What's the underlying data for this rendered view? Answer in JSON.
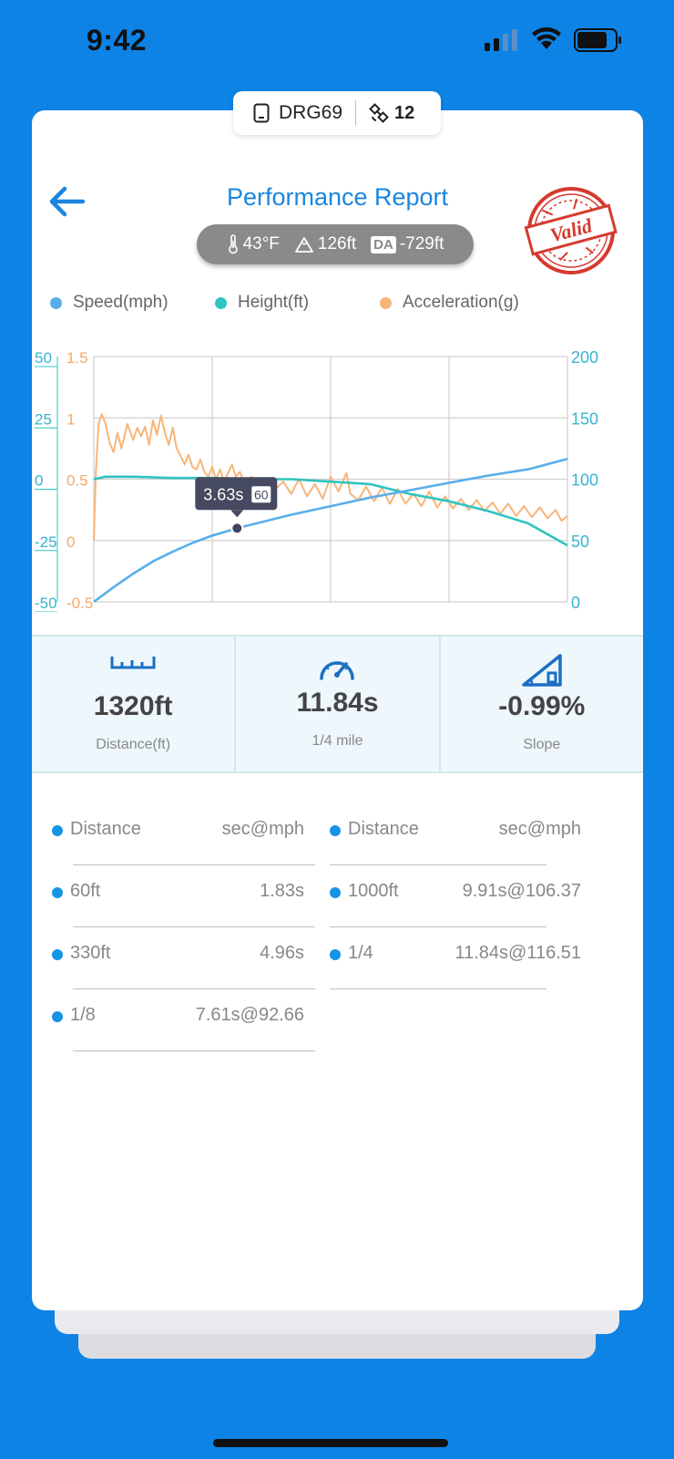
{
  "status_bar": {
    "time": "9:42"
  },
  "device": {
    "name": "DRG69",
    "satellites": "12"
  },
  "header": {
    "title": "Performance Report",
    "stamp_text": "Valid"
  },
  "conditions": {
    "temperature": "43°F",
    "altitude": "126ft",
    "da_label": "DA",
    "density_altitude": "-729ft"
  },
  "legend": [
    {
      "label": "Speed(mph)",
      "color": "#5aaee8"
    },
    {
      "label": "Height(ft)",
      "color": "#2ec4c0"
    },
    {
      "label": "Acceleration(g)",
      "color": "#f7b57a"
    }
  ],
  "chart_data": {
    "type": "line",
    "x_range": [
      0,
      12
    ],
    "axes": {
      "height_ticks": [
        "50",
        "25",
        "0",
        "-25",
        "-50"
      ],
      "accel_ticks": [
        "1.5",
        "1",
        "0.5",
        "0",
        "-0.5"
      ],
      "speed_ticks": [
        "200",
        "150",
        "100",
        "50",
        "0"
      ],
      "height_range": [
        -50,
        50
      ],
      "accel_range": [
        -0.5,
        1.5
      ],
      "speed_range": [
        0,
        200
      ]
    },
    "grid": true,
    "series": [
      {
        "name": "Speed(mph)",
        "axis": "right",
        "color": "#5aaee8",
        "points": [
          [
            0,
            0
          ],
          [
            0.5,
            12
          ],
          [
            1,
            23
          ],
          [
            1.5,
            33
          ],
          [
            2,
            41
          ],
          [
            2.5,
            48
          ],
          [
            3,
            54
          ],
          [
            3.63,
            60
          ],
          [
            4,
            63
          ],
          [
            5,
            71
          ],
          [
            6,
            78
          ],
          [
            7,
            85
          ],
          [
            8,
            91
          ],
          [
            9,
            97
          ],
          [
            10,
            103
          ],
          [
            11,
            108
          ],
          [
            12,
            116.5
          ]
        ]
      },
      {
        "name": "Height(ft)",
        "axis": "left",
        "color": "#2ec4c0",
        "points": [
          [
            0,
            0
          ],
          [
            0.3,
            1
          ],
          [
            1,
            1
          ],
          [
            2,
            0.5
          ],
          [
            3,
            0.5
          ],
          [
            4,
            0
          ],
          [
            5,
            0
          ],
          [
            6,
            -1
          ],
          [
            7,
            -2
          ],
          [
            8,
            -6
          ],
          [
            9,
            -9
          ],
          [
            10,
            -13
          ],
          [
            11,
            -18
          ],
          [
            12,
            -27
          ]
        ]
      },
      {
        "name": "Acceleration(g)",
        "axis": "left2",
        "color": "#f7b57a",
        "points": [
          [
            0,
            0
          ],
          [
            0.05,
            0.55
          ],
          [
            0.12,
            0.95
          ],
          [
            0.2,
            1.03
          ],
          [
            0.3,
            0.95
          ],
          [
            0.4,
            0.8
          ],
          [
            0.5,
            0.72
          ],
          [
            0.6,
            0.88
          ],
          [
            0.7,
            0.75
          ],
          [
            0.85,
            0.95
          ],
          [
            1.0,
            0.82
          ],
          [
            1.1,
            0.92
          ],
          [
            1.2,
            0.85
          ],
          [
            1.3,
            0.93
          ],
          [
            1.4,
            0.78
          ],
          [
            1.5,
            0.98
          ],
          [
            1.6,
            0.86
          ],
          [
            1.7,
            1.02
          ],
          [
            1.8,
            0.88
          ],
          [
            1.9,
            0.78
          ],
          [
            2.0,
            0.92
          ],
          [
            2.1,
            0.75
          ],
          [
            2.2,
            0.69
          ],
          [
            2.3,
            0.62
          ],
          [
            2.4,
            0.7
          ],
          [
            2.5,
            0.6
          ],
          [
            2.6,
            0.58
          ],
          [
            2.7,
            0.66
          ],
          [
            2.8,
            0.56
          ],
          [
            2.9,
            0.52
          ],
          [
            3.0,
            0.6
          ],
          [
            3.1,
            0.5
          ],
          [
            3.2,
            0.58
          ],
          [
            3.3,
            0.48
          ],
          [
            3.4,
            0.55
          ],
          [
            3.5,
            0.62
          ],
          [
            3.6,
            0.52
          ],
          [
            3.7,
            0.56
          ],
          [
            3.8,
            0.48
          ],
          [
            4.0,
            0.52
          ],
          [
            4.2,
            0.45
          ],
          [
            4.4,
            0.5
          ],
          [
            4.6,
            0.42
          ],
          [
            4.8,
            0.48
          ],
          [
            5.0,
            0.38
          ],
          [
            5.2,
            0.5
          ],
          [
            5.4,
            0.36
          ],
          [
            5.6,
            0.46
          ],
          [
            5.8,
            0.34
          ],
          [
            6.0,
            0.52
          ],
          [
            6.2,
            0.4
          ],
          [
            6.4,
            0.55
          ],
          [
            6.5,
            0.38
          ],
          [
            6.7,
            0.33
          ],
          [
            6.9,
            0.44
          ],
          [
            7.1,
            0.32
          ],
          [
            7.3,
            0.43
          ],
          [
            7.5,
            0.3
          ],
          [
            7.7,
            0.42
          ],
          [
            7.9,
            0.3
          ],
          [
            8.1,
            0.38
          ],
          [
            8.3,
            0.28
          ],
          [
            8.5,
            0.4
          ],
          [
            8.7,
            0.27
          ],
          [
            8.9,
            0.36
          ],
          [
            9.1,
            0.26
          ],
          [
            9.3,
            0.34
          ],
          [
            9.5,
            0.25
          ],
          [
            9.7,
            0.33
          ],
          [
            9.9,
            0.24
          ],
          [
            10.1,
            0.31
          ],
          [
            10.3,
            0.22
          ],
          [
            10.5,
            0.3
          ],
          [
            10.7,
            0.2
          ],
          [
            10.9,
            0.28
          ],
          [
            11.1,
            0.19
          ],
          [
            11.3,
            0.27
          ],
          [
            11.5,
            0.18
          ],
          [
            11.7,
            0.25
          ],
          [
            11.85,
            0.16
          ],
          [
            12,
            0.2
          ]
        ]
      }
    ],
    "tooltip": {
      "time": "3.63s",
      "value": "60",
      "x": 3.63,
      "speed": 60
    }
  },
  "stats": [
    {
      "icon": "ruler-icon",
      "value": "1320ft",
      "label": "Distance(ft)"
    },
    {
      "icon": "speedometer-icon",
      "value": "11.84s",
      "label": "1/4 mile"
    },
    {
      "icon": "slope-icon",
      "value": "-0.99%",
      "label": "Slope"
    }
  ],
  "splits": {
    "header": {
      "distance": "Distance",
      "value": "sec@mph"
    },
    "left": [
      {
        "distance": "60ft",
        "value": "1.83s"
      },
      {
        "distance": "330ft",
        "value": "4.96s"
      },
      {
        "distance": "1/8",
        "value": "7.61s@92.66"
      }
    ],
    "right": [
      {
        "distance": "1000ft",
        "value": "9.91s@106.37"
      },
      {
        "distance": "1/4",
        "value": "11.84s@116.51"
      }
    ]
  }
}
